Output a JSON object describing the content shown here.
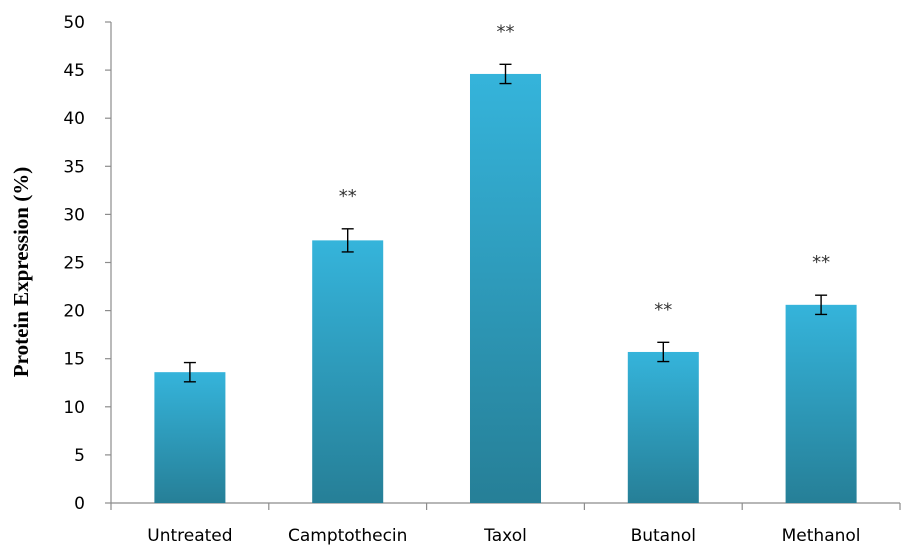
{
  "chart_data": {
    "type": "bar",
    "title": "",
    "xlabel": "",
    "ylabel": "Protein Expression (%)",
    "ylim": [
      0,
      50
    ],
    "ytick_step": 5,
    "categories": [
      "Untreated",
      "Camptothecin",
      "Taxol",
      "Butanol",
      "Methanol"
    ],
    "values": [
      13.6,
      27.3,
      44.6,
      15.7,
      20.6
    ],
    "errors": [
      1.0,
      1.2,
      1.0,
      1.0,
      1.0
    ],
    "significance": [
      "",
      "**",
      "**",
      "**",
      "**"
    ],
    "bar_color_top": "#35b4db",
    "bar_color_bottom": "#267f97",
    "grid": false,
    "legend": "none"
  }
}
